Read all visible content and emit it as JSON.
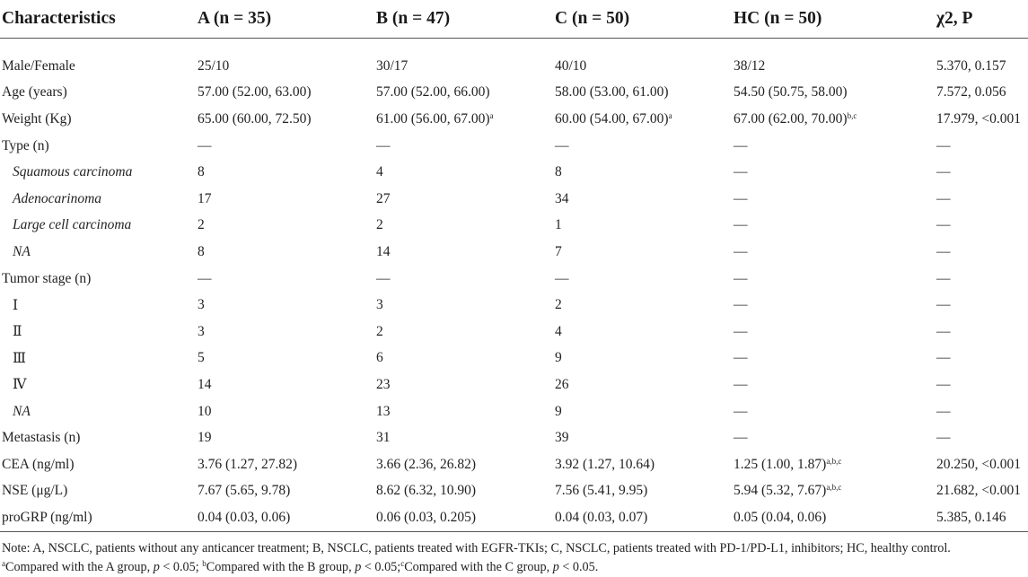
{
  "headers": [
    "Characteristics",
    "A (n = 35)",
    "B (n = 47)",
    "C (n = 50)",
    "HC (n = 50)",
    "χ2, P"
  ],
  "rows": [
    {
      "label": "Male/Female",
      "style": "plain",
      "cells": [
        "25/10",
        "30/17",
        "40/10",
        "38/12",
        "5.370, 0.157"
      ],
      "sups": [
        "",
        "",
        "",
        "",
        ""
      ]
    },
    {
      "label": "Age (years)",
      "style": "plain",
      "cells": [
        "57.00 (52.00, 63.00)",
        "57.00 (52.00, 66.00)",
        "58.00 (53.00, 61.00)",
        "54.50 (50.75, 58.00)",
        "7.572, 0.056"
      ],
      "sups": [
        "",
        "",
        "",
        "",
        ""
      ]
    },
    {
      "label": "Weight (Kg)",
      "style": "plain",
      "cells": [
        "65.00 (60.00, 72.50)",
        "61.00 (56.00, 67.00)",
        "60.00 (54.00, 67.00)",
        "67.00 (62.00, 70.00)",
        "17.979, <0.001"
      ],
      "sups": [
        "",
        "a",
        "a",
        "b,c",
        ""
      ]
    },
    {
      "label": "Type (n)",
      "style": "plain",
      "cells": [
        "—",
        "—",
        "—",
        "—",
        "—"
      ],
      "sups": [
        "",
        "",
        "",
        "",
        ""
      ]
    },
    {
      "label": "Squamous carcinoma",
      "style": "sub",
      "cells": [
        "8",
        "4",
        "8",
        "—",
        "—"
      ],
      "sups": [
        "",
        "",
        "",
        "",
        ""
      ]
    },
    {
      "label": "Adenocarinoma",
      "style": "sub",
      "cells": [
        "17",
        "27",
        "34",
        "—",
        "—"
      ],
      "sups": [
        "",
        "",
        "",
        "",
        ""
      ]
    },
    {
      "label": "Large cell carcinoma",
      "style": "sub",
      "cells": [
        "2",
        "2",
        "1",
        "—",
        "—"
      ],
      "sups": [
        "",
        "",
        "",
        "",
        ""
      ]
    },
    {
      "label": "NA",
      "style": "sub",
      "cells": [
        "8",
        "14",
        "7",
        "—",
        "—"
      ],
      "sups": [
        "",
        "",
        "",
        "",
        ""
      ]
    },
    {
      "label": "Tumor stage (n)",
      "style": "plain",
      "cells": [
        "—",
        "—",
        "—",
        "—",
        "—"
      ],
      "sups": [
        "",
        "",
        "",
        "",
        ""
      ]
    },
    {
      "label": "Ⅰ",
      "style": "stage",
      "cells": [
        "3",
        "3",
        "2",
        "—",
        "—"
      ],
      "sups": [
        "",
        "",
        "",
        "",
        ""
      ]
    },
    {
      "label": "Ⅱ",
      "style": "stage",
      "cells": [
        "3",
        "2",
        "4",
        "—",
        "—"
      ],
      "sups": [
        "",
        "",
        "",
        "",
        ""
      ]
    },
    {
      "label": "Ⅲ",
      "style": "stage",
      "cells": [
        "5",
        "6",
        "9",
        "—",
        "—"
      ],
      "sups": [
        "",
        "",
        "",
        "",
        ""
      ]
    },
    {
      "label": "Ⅳ",
      "style": "stage",
      "cells": [
        "14",
        "23",
        "26",
        "—",
        "—"
      ],
      "sups": [
        "",
        "",
        "",
        "",
        ""
      ]
    },
    {
      "label": "NA",
      "style": "sub",
      "cells": [
        "10",
        "13",
        "9",
        "—",
        "—"
      ],
      "sups": [
        "",
        "",
        "",
        "",
        ""
      ]
    },
    {
      "label": "Metastasis (n)",
      "style": "plain",
      "cells": [
        "19",
        "31",
        "39",
        "—",
        "—"
      ],
      "sups": [
        "",
        "",
        "",
        "",
        ""
      ]
    },
    {
      "label": "CEA (ng/ml)",
      "style": "plain",
      "cells": [
        "3.76 (1.27, 27.82)",
        "3.66 (2.36, 26.82)",
        "3.92 (1.27, 10.64)",
        "1.25 (1.00, 1.87)",
        "20.250, <0.001"
      ],
      "sups": [
        "",
        "",
        "",
        "a,b,c",
        ""
      ]
    },
    {
      "label": "NSE (μg/L)",
      "style": "plain",
      "cells": [
        "7.67 (5.65, 9.78)",
        "8.62 (6.32, 10.90)",
        "7.56 (5.41, 9.95)",
        "5.94 (5.32, 7.67)",
        "21.682, <0.001"
      ],
      "sups": [
        "",
        "",
        "",
        "a,b,c",
        ""
      ]
    },
    {
      "label": "proGRP (ng/ml)",
      "style": "plain",
      "cells": [
        "0.04 (0.03, 0.06)",
        "0.06 (0.03, 0.205)",
        "0.04 (0.03, 0.07)",
        "0.05 (0.04, 0.06)",
        "5.385, 0.146"
      ],
      "sups": [
        "",
        "",
        "",
        "",
        ""
      ]
    }
  ],
  "notes": {
    "line1": "Note: A, NSCLC, patients without any anticancer treatment; B, NSCLC, patients treated with EGFR-TKIs; C, NSCLC, patients treated with PD-1/PD-L1, inhibitors; HC, healthy control.",
    "line2_parts": [
      {
        "sup": "a",
        "text": "Compared with the A group, ",
        "p": "p",
        "tail": " < 0.05; "
      },
      {
        "sup": "b",
        "text": "Compared with the B group, ",
        "p": "p",
        "tail": " < 0.05;"
      },
      {
        "sup": "c",
        "text": "Compared with the C group, ",
        "p": "p",
        "tail": " < 0.05."
      }
    ]
  }
}
